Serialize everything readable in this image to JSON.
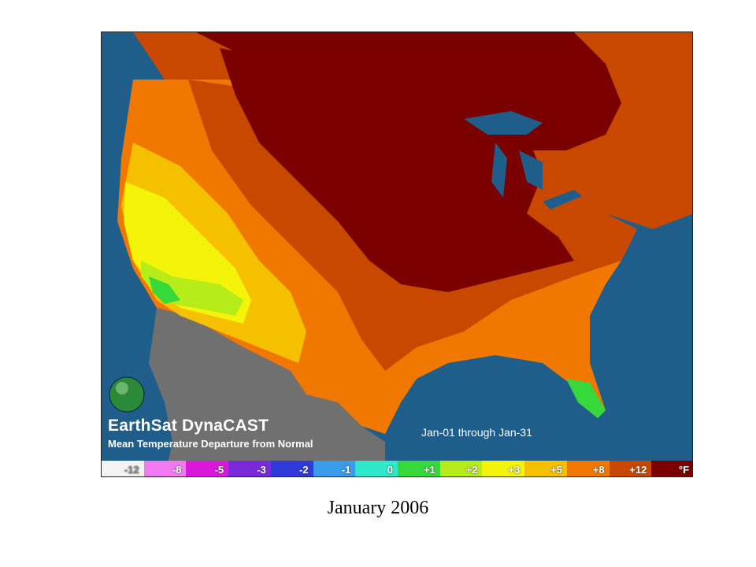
{
  "map": {
    "brand_title": "EarthSat DynaCAST",
    "subtitle": "Mean Temperature Departure from Normal",
    "date_range": "Jan-01 through Jan-31",
    "logo_icon": "globe-icon",
    "colors": {
      "ocean": "#1f5d8a",
      "mexico": "#707070",
      "border": "#1a1a1a"
    }
  },
  "legend": {
    "items": [
      {
        "label": "-12",
        "color": "#f4f4f4"
      },
      {
        "label": "-8",
        "color": "#f07af0"
      },
      {
        "label": "-5",
        "color": "#d81ad8"
      },
      {
        "label": "-3",
        "color": "#7a2ad8"
      },
      {
        "label": "-2",
        "color": "#2f3ad8"
      },
      {
        "label": "-1",
        "color": "#3a9be8"
      },
      {
        "label": "0",
        "color": "#2ee8c8"
      },
      {
        "label": "+1",
        "color": "#36d83a"
      },
      {
        "label": "+2",
        "color": "#b6ec1a"
      },
      {
        "label": "+3",
        "color": "#f4f40a"
      },
      {
        "label": "+5",
        "color": "#f4c000"
      },
      {
        "label": "+8",
        "color": "#f07800"
      },
      {
        "label": "+12",
        "color": "#c84800"
      },
      {
        "label": "°F",
        "color": "#7a0000"
      }
    ]
  },
  "caption": "January 2006"
}
